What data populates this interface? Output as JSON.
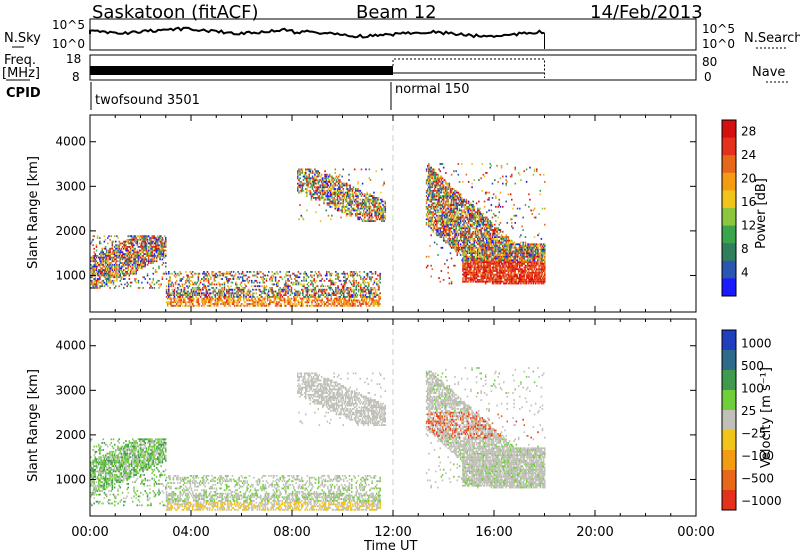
{
  "header": {
    "station": "Saskatoon (fitACF)",
    "beam": "Beam 12",
    "date": "14/Feb/2013"
  },
  "side_labels": {
    "nsky": "N.Sky",
    "freq": "Freq.",
    "freq_unit": "[MHz]",
    "cpid": "CPID",
    "nsearch": "N.Search",
    "nave": "Nave"
  },
  "strip_ticks": {
    "noise_left_top": "10^5",
    "noise_left_bottom": "10^0",
    "noise_right_top": "10^5",
    "noise_right_bottom": "10^0",
    "freq_top": "18",
    "freq_bottom": "8",
    "nave_top": "80",
    "nave_bottom": "0"
  },
  "cpid": {
    "first": "twofsound 3501",
    "second": "normal 150"
  },
  "chart_data": [
    {
      "type": "heatmap",
      "panel": "power",
      "ylabel": "Slant Range [km]",
      "xlabel": "Time UT",
      "x_range_hours": [
        0,
        24
      ],
      "ylim": [
        180,
        4600
      ],
      "yticks": [
        "1000",
        "2000",
        "3000",
        "4000"
      ],
      "xticks": [
        "00:00",
        "04:00",
        "08:00",
        "12:00",
        "16:00",
        "20:00",
        "00:00"
      ],
      "colorbar": {
        "label": "Power [dB]",
        "ticks": [
          "4",
          "8",
          "12",
          "16",
          "20",
          "24",
          "28"
        ],
        "range": [
          0,
          30
        ],
        "colors": [
          "#1a1aff",
          "#2a55b0",
          "#2f7f5c",
          "#3aa54a",
          "#8cc63f",
          "#f0c419",
          "#f39c12",
          "#e8681a",
          "#e3311c",
          "#d40f10"
        ]
      },
      "features": [
        {
          "name": "ionospheric scatter early",
          "t_start": 0.0,
          "t_end": 3.0,
          "range_km": [
            700,
            1900
          ],
          "power_db": [
            10,
            28
          ]
        },
        {
          "name": "ground scatter band",
          "t_start": 3.0,
          "t_end": 11.5,
          "range_km": [
            300,
            1100
          ],
          "power_db": [
            6,
            24
          ]
        },
        {
          "name": "upper echo patch",
          "t_start": 8.2,
          "t_end": 11.7,
          "range_km": [
            2200,
            3400
          ],
          "power_db": [
            4,
            18
          ]
        },
        {
          "name": "afternoon scatter",
          "t_start": 13.3,
          "t_end": 18.0,
          "range_km": [
            800,
            3500
          ],
          "power_db": [
            4,
            30
          ]
        }
      ]
    },
    {
      "type": "heatmap",
      "panel": "velocity",
      "ylabel": "Slant Range [km]",
      "xlabel": "Time UT",
      "x_range_hours": [
        0,
        24
      ],
      "ylim": [
        180,
        4600
      ],
      "yticks": [
        "1000",
        "2000",
        "3000",
        "4000"
      ],
      "xticks": [
        "00:00",
        "04:00",
        "08:00",
        "12:00",
        "16:00",
        "20:00",
        "00:00"
      ],
      "colorbar": {
        "label": "Velocity [m s⁻¹]",
        "ticks": [
          "1000",
          "500",
          "100",
          "25",
          "−25",
          "−100",
          "−500",
          "−1000"
        ],
        "colors": [
          "#1f3fbf",
          "#2e6b8a",
          "#3f9a4f",
          "#6fce3a",
          "#c0c0b8",
          "#f0c419",
          "#f39c12",
          "#e8681a",
          "#e3311c"
        ]
      },
      "features": [
        {
          "name": "early scatter",
          "t_start": 0.0,
          "t_end": 3.0,
          "range_km": [
            400,
            1900
          ],
          "velocity": "mixed green/grey"
        },
        {
          "name": "ground scatter",
          "t_start": 3.0,
          "t_end": 11.5,
          "range_km": [
            300,
            1100
          ],
          "velocity": "grey low velocity"
        },
        {
          "name": "upper patch",
          "t_start": 8.2,
          "t_end": 11.7,
          "range_km": [
            2200,
            3400
          ],
          "velocity": "grey"
        },
        {
          "name": "afternoon scatter",
          "t_start": 13.3,
          "t_end": 18.0,
          "range_km": [
            800,
            3500
          ],
          "velocity": "grey with orange/red"
        }
      ]
    }
  ]
}
